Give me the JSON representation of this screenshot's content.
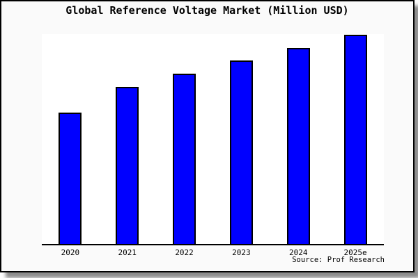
{
  "frame": {
    "background": "#fafafa",
    "border_color": "#000000",
    "plot_background": "#ffffff",
    "shadow_color": "#888888",
    "text_color": "#000000"
  },
  "footer": {
    "source": "Source: Prof Research"
  },
  "chart_data": {
    "type": "bar",
    "title": "Global Reference Voltage Market (Million USD)",
    "categories": [
      "2020",
      "2021",
      "2022",
      "2023",
      "2024",
      "2025e"
    ],
    "values": [
      62.6,
      74.8,
      81.1,
      87.4,
      93.4,
      99.7
    ],
    "xlabel": "",
    "ylabel": "",
    "ylim": [
      0,
      100
    ],
    "units": "Million USD",
    "value_scale": "relative; no numeric y-axis labels shown, 100 = plot top, values estimated from bar pixel heights",
    "bar_color": "#0000ff",
    "bar_border_color": "#000000",
    "grid": false,
    "legend": "none",
    "axis_lines": "bottom only",
    "annotations": [
      "Source: Prof Research"
    ]
  }
}
